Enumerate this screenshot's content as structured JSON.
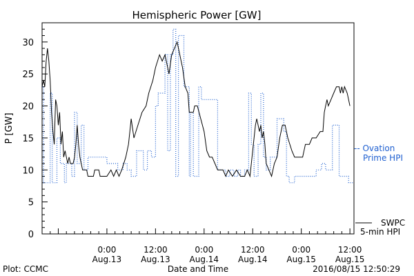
{
  "chart_data": {
    "type": "line",
    "title": "Hemispheric Power [GW]",
    "xlabel": "Date and Time",
    "ylabel": "P [GW]",
    "ylim": [
      0,
      33
    ],
    "yticks": [
      0,
      5,
      10,
      15,
      20,
      25,
      30
    ],
    "xlim": [
      "2016-08-12T08:00",
      "2016-08-15T13:00"
    ],
    "xticks": [
      {
        "t": "2016-08-13T00:00",
        "line1": "0:00",
        "line2": "Aug.13"
      },
      {
        "t": "2016-08-13T12:00",
        "line1": "12:00",
        "line2": "Aug.13"
      },
      {
        "t": "2016-08-14T00:00",
        "line1": "0:00",
        "line2": "Aug.14"
      },
      {
        "t": "2016-08-14T12:00",
        "line1": "12:00",
        "line2": "Aug.14"
      },
      {
        "t": "2016-08-15T00:00",
        "line1": "0:00",
        "line2": "Aug.15"
      },
      {
        "t": "2016-08-15T12:00",
        "line1": "12:00",
        "line2": "Aug.15"
      }
    ],
    "grid": false,
    "legend_placement": "right",
    "series": [
      {
        "name": "Ovation Prime HPI",
        "legend": [
          "-- Ovation",
          "Prime HPI"
        ],
        "color": "#1e5fd0",
        "style": "dotted",
        "step": true,
        "points": [
          [
            "2016-08-12T08:00",
            23
          ],
          [
            "2016-08-12T08:20",
            8
          ],
          [
            "2016-08-12T10:00",
            22
          ],
          [
            "2016-08-12T10:30",
            8
          ],
          [
            "2016-08-12T11:40",
            15
          ],
          [
            "2016-08-12T12:30",
            11
          ],
          [
            "2016-08-12T13:30",
            8
          ],
          [
            "2016-08-12T14:00",
            11
          ],
          [
            "2016-08-12T15:20",
            9
          ],
          [
            "2016-08-12T16:00",
            19
          ],
          [
            "2016-08-12T16:40",
            11
          ],
          [
            "2016-08-12T17:40",
            17
          ],
          [
            "2016-08-12T18:20",
            10
          ],
          [
            "2016-08-12T19:20",
            12
          ],
          [
            "2016-08-12T21:20",
            12
          ],
          [
            "2016-08-13T00:00",
            11
          ],
          [
            "2016-08-13T01:40",
            11
          ],
          [
            "2016-08-13T02:40",
            10
          ],
          [
            "2016-08-13T04:00",
            11
          ],
          [
            "2016-08-13T05:00",
            10
          ],
          [
            "2016-08-13T06:00",
            9
          ],
          [
            "2016-08-13T07:20",
            13
          ],
          [
            "2016-08-13T09:00",
            10
          ],
          [
            "2016-08-13T10:00",
            13
          ],
          [
            "2016-08-13T11:00",
            12
          ],
          [
            "2016-08-13T12:00",
            20
          ],
          [
            "2016-08-13T12:40",
            22
          ],
          [
            "2016-08-13T14:20",
            28
          ],
          [
            "2016-08-13T15:00",
            13
          ],
          [
            "2016-08-13T15:40",
            28
          ],
          [
            "2016-08-13T16:20",
            32
          ],
          [
            "2016-08-13T17:00",
            9
          ],
          [
            "2016-08-13T17:40",
            31
          ],
          [
            "2016-08-13T19:00",
            23
          ],
          [
            "2016-08-13T20:20",
            9
          ],
          [
            "2016-08-13T20:40",
            19
          ],
          [
            "2016-08-13T21:20",
            9
          ],
          [
            "2016-08-13T22:40",
            23
          ],
          [
            "2016-08-13T23:20",
            21
          ],
          [
            "2016-08-14T02:00",
            21
          ],
          [
            "2016-08-14T03:20",
            10
          ],
          [
            "2016-08-14T04:20",
            10
          ],
          [
            "2016-08-14T05:20",
            9
          ],
          [
            "2016-08-14T06:20",
            10
          ],
          [
            "2016-08-14T07:20",
            9
          ],
          [
            "2016-08-14T08:20",
            10
          ],
          [
            "2016-08-14T09:00",
            9
          ],
          [
            "2016-08-14T10:00",
            10
          ],
          [
            "2016-08-14T11:00",
            22
          ],
          [
            "2016-08-14T11:40",
            14
          ],
          [
            "2016-08-14T12:20",
            9
          ],
          [
            "2016-08-14T13:20",
            14
          ],
          [
            "2016-08-14T14:00",
            22
          ],
          [
            "2016-08-14T14:40",
            12
          ],
          [
            "2016-08-14T15:20",
            10
          ],
          [
            "2016-08-14T16:20",
            12
          ],
          [
            "2016-08-14T18:00",
            18
          ],
          [
            "2016-08-14T19:40",
            16
          ],
          [
            "2016-08-14T20:20",
            9
          ],
          [
            "2016-08-14T21:00",
            8
          ],
          [
            "2016-08-14T22:20",
            9
          ],
          [
            "2016-08-15T02:40",
            9
          ],
          [
            "2016-08-15T03:40",
            10
          ],
          [
            "2016-08-15T05:00",
            11
          ],
          [
            "2016-08-15T06:00",
            10
          ],
          [
            "2016-08-15T07:40",
            17
          ],
          [
            "2016-08-15T09:20",
            9
          ],
          [
            "2016-08-15T10:40",
            9
          ],
          [
            "2016-08-15T11:40",
            8
          ],
          [
            "2016-08-15T13:00",
            8
          ]
        ]
      },
      {
        "name": "SWPC 5-min HPI",
        "legend": [
          "SWPC",
          "5-min HPI"
        ],
        "color": "#000000",
        "style": "solid",
        "step": false,
        "points": [
          [
            "2016-08-12T08:00",
            23
          ],
          [
            "2016-08-12T08:20",
            24
          ],
          [
            "2016-08-12T08:40",
            23
          ],
          [
            "2016-08-12T09:00",
            27
          ],
          [
            "2016-08-12T09:20",
            29
          ],
          [
            "2016-08-12T09:40",
            27
          ],
          [
            "2016-08-12T10:00",
            24
          ],
          [
            "2016-08-12T10:20",
            19
          ],
          [
            "2016-08-12T10:40",
            16
          ],
          [
            "2016-08-12T11:00",
            14
          ],
          [
            "2016-08-12T11:20",
            21
          ],
          [
            "2016-08-12T11:40",
            20
          ],
          [
            "2016-08-12T12:00",
            17
          ],
          [
            "2016-08-12T12:20",
            19
          ],
          [
            "2016-08-12T12:40",
            14
          ],
          [
            "2016-08-12T13:00",
            16
          ],
          [
            "2016-08-12T13:20",
            12
          ],
          [
            "2016-08-12T13:40",
            13
          ],
          [
            "2016-08-12T14:00",
            12
          ],
          [
            "2016-08-12T14:20",
            11
          ],
          [
            "2016-08-12T14:40",
            12
          ],
          [
            "2016-08-12T15:00",
            11
          ],
          [
            "2016-08-12T15:40",
            11
          ],
          [
            "2016-08-12T16:00",
            12
          ],
          [
            "2016-08-12T16:20",
            14
          ],
          [
            "2016-08-12T16:40",
            17
          ],
          [
            "2016-08-12T17:00",
            14
          ],
          [
            "2016-08-12T17:20",
            12
          ],
          [
            "2016-08-12T17:40",
            11
          ],
          [
            "2016-08-12T18:00",
            10
          ],
          [
            "2016-08-12T19:00",
            10
          ],
          [
            "2016-08-12T19:20",
            9
          ],
          [
            "2016-08-12T20:40",
            9
          ],
          [
            "2016-08-12T21:00",
            10
          ],
          [
            "2016-08-12T22:00",
            10
          ],
          [
            "2016-08-12T22:20",
            9
          ],
          [
            "2016-08-13T00:00",
            9
          ],
          [
            "2016-08-13T01:00",
            10
          ],
          [
            "2016-08-13T01:40",
            9
          ],
          [
            "2016-08-13T02:20",
            10
          ],
          [
            "2016-08-13T03:00",
            9
          ],
          [
            "2016-08-13T03:40",
            10
          ],
          [
            "2016-08-13T04:40",
            12
          ],
          [
            "2016-08-13T05:20",
            14
          ],
          [
            "2016-08-13T05:40",
            16
          ],
          [
            "2016-08-13T06:00",
            18
          ],
          [
            "2016-08-13T06:40",
            15
          ],
          [
            "2016-08-13T07:40",
            17
          ],
          [
            "2016-08-13T08:40",
            19
          ],
          [
            "2016-08-13T09:40",
            20
          ],
          [
            "2016-08-13T10:20",
            22
          ],
          [
            "2016-08-13T11:20",
            24
          ],
          [
            "2016-08-13T12:00",
            26
          ],
          [
            "2016-08-13T13:00",
            28
          ],
          [
            "2016-08-13T13:40",
            27
          ],
          [
            "2016-08-13T14:20",
            28
          ],
          [
            "2016-08-13T15:00",
            26
          ],
          [
            "2016-08-13T15:20",
            25
          ],
          [
            "2016-08-13T16:00",
            28
          ],
          [
            "2016-08-13T16:40",
            29
          ],
          [
            "2016-08-13T17:20",
            30
          ],
          [
            "2016-08-13T18:00",
            28
          ],
          [
            "2016-08-13T18:40",
            26
          ],
          [
            "2016-08-13T19:20",
            23
          ],
          [
            "2016-08-13T20:00",
            22
          ],
          [
            "2016-08-13T20:20",
            19
          ],
          [
            "2016-08-13T21:20",
            19
          ],
          [
            "2016-08-13T21:40",
            20
          ],
          [
            "2016-08-13T22:20",
            20
          ],
          [
            "2016-08-14T00:00",
            16
          ],
          [
            "2016-08-14T00:40",
            13
          ],
          [
            "2016-08-14T01:20",
            12
          ],
          [
            "2016-08-14T02:00",
            12
          ],
          [
            "2016-08-14T02:40",
            11
          ],
          [
            "2016-08-14T03:20",
            10
          ],
          [
            "2016-08-14T04:40",
            10
          ],
          [
            "2016-08-14T05:20",
            9
          ],
          [
            "2016-08-14T06:00",
            10
          ],
          [
            "2016-08-14T07:00",
            9
          ],
          [
            "2016-08-14T08:00",
            10
          ],
          [
            "2016-08-14T09:00",
            9
          ],
          [
            "2016-08-14T10:00",
            9
          ],
          [
            "2016-08-14T10:40",
            10
          ],
          [
            "2016-08-14T11:20",
            9
          ],
          [
            "2016-08-14T12:00",
            13
          ],
          [
            "2016-08-14T12:20",
            15
          ],
          [
            "2016-08-14T12:40",
            17
          ],
          [
            "2016-08-14T13:00",
            18
          ],
          [
            "2016-08-14T13:40",
            16
          ],
          [
            "2016-08-14T14:00",
            17
          ],
          [
            "2016-08-14T14:20",
            15
          ],
          [
            "2016-08-14T14:40",
            16
          ],
          [
            "2016-08-14T15:00",
            14
          ],
          [
            "2016-08-14T15:20",
            11
          ],
          [
            "2016-08-14T16:00",
            10
          ],
          [
            "2016-08-14T16:40",
            9
          ],
          [
            "2016-08-14T17:20",
            11
          ],
          [
            "2016-08-14T18:00",
            12
          ],
          [
            "2016-08-14T18:40",
            15
          ],
          [
            "2016-08-14T19:20",
            17
          ],
          [
            "2016-08-14T20:00",
            17
          ],
          [
            "2016-08-14T20:40",
            15
          ],
          [
            "2016-08-14T21:40",
            13
          ],
          [
            "2016-08-14T22:20",
            12
          ],
          [
            "2016-08-14T23:00",
            12
          ],
          [
            "2016-08-15T00:20",
            12
          ],
          [
            "2016-08-15T01:00",
            14
          ],
          [
            "2016-08-15T02:00",
            14
          ],
          [
            "2016-08-15T02:40",
            15
          ],
          [
            "2016-08-15T03:40",
            15
          ],
          [
            "2016-08-15T04:40",
            16
          ],
          [
            "2016-08-15T05:20",
            16
          ],
          [
            "2016-08-15T05:40",
            19
          ],
          [
            "2016-08-15T06:00",
            20
          ],
          [
            "2016-08-15T06:20",
            21
          ],
          [
            "2016-08-15T06:40",
            20
          ],
          [
            "2016-08-15T07:20",
            21
          ],
          [
            "2016-08-15T08:00",
            22
          ],
          [
            "2016-08-15T08:40",
            23
          ],
          [
            "2016-08-15T09:20",
            23
          ],
          [
            "2016-08-15T09:40",
            22
          ],
          [
            "2016-08-15T10:00",
            23
          ],
          [
            "2016-08-15T10:20",
            22
          ],
          [
            "2016-08-15T10:40",
            23
          ],
          [
            "2016-08-15T11:20",
            22
          ],
          [
            "2016-08-15T11:40",
            21
          ],
          [
            "2016-08-15T12:00",
            20
          ]
        ]
      }
    ]
  },
  "footer": {
    "left": "Plot: CCMC",
    "right": "2016/08/15 12:50:29"
  },
  "colors": {
    "ovation": "#1e5fd0",
    "swpc": "#000000"
  }
}
